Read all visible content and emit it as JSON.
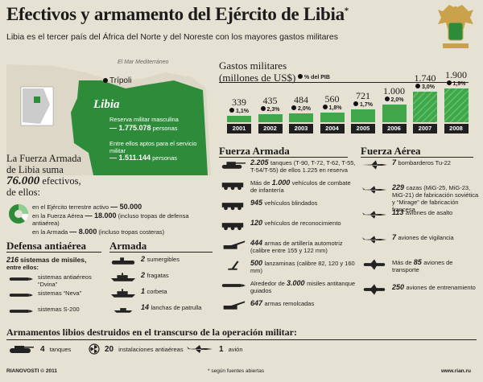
{
  "header": {
    "title": "Efectivos y armamento del Ejército de Libia",
    "title_mark": "*",
    "subtitle": "Libia es el tercer país del África del Norte y del Noreste con los mayores gastos militares"
  },
  "map": {
    "sea_label": "El Mar Mediterráneo",
    "capital": "Trípoli",
    "country": "Libia",
    "reserve_label": "Reserva militar masculina",
    "reserve_value": "— 1.775.078",
    "reserve_unit": "personas",
    "fit_label": "Entre ellos aptos para el servicio militar",
    "fit_value": "— 1.511.144",
    "fit_unit": "personas"
  },
  "armed_force": {
    "intro1": "La Fuerza Armada",
    "intro2": "de Libia suma",
    "count": "76.000",
    "intro3": "efectivos,",
    "intro4": "de ellos:",
    "items": [
      {
        "prefix": "en el Ejército terrestre activo",
        "value": "— 50.000",
        "note": ""
      },
      {
        "prefix": "en la Fuerza Aérea",
        "value": "— 18.000",
        "note": "(incluso tropas de defensa antiaérea)"
      },
      {
        "prefix": "en la Armada",
        "value": "— 8.000",
        "note": "(incluso tropas costeras)"
      }
    ]
  },
  "chart_data": {
    "type": "bar",
    "title": "Gastos militares",
    "subtitle": "(millones de US$)",
    "legend": "% del PIB",
    "categories": [
      "2001",
      "2002",
      "2003",
      "2004",
      "2005",
      "2006",
      "2007",
      "2008"
    ],
    "values": [
      339,
      435,
      484,
      560,
      721,
      1000,
      1740,
      1900
    ],
    "value_labels": [
      "339",
      "435",
      "484",
      "560",
      "721",
      "1.000",
      "1.740",
      "1.900"
    ],
    "pct_labels": [
      "1,1%",
      "2,3%",
      "2,0%",
      "1,8%",
      "1,7%",
      "2,0%",
      "3,0%",
      "1,9%"
    ],
    "hatched": [
      false,
      false,
      false,
      false,
      false,
      false,
      true,
      true
    ]
  },
  "fuerza_armada": {
    "heading": "Fuerza Armada",
    "items": [
      {
        "num": "2.205",
        "text": "tanques (T-90, T-72, T-62, T-55, T-54/T-55) de ellos 1.225 en reserva"
      },
      {
        "num": "1.000",
        "pre": "Más de",
        "text": "vehículos de combate de infantería"
      },
      {
        "num": "945",
        "text": "vehículos blindados"
      },
      {
        "num": "120",
        "text": "vehículos de reconocimiento"
      },
      {
        "num": "444",
        "text": "armas de artillería automotriz (calibre entre 155 y 122 mm)"
      },
      {
        "num": "500",
        "text": "lanzaminas (calibre 82, 120 y 160 mm)"
      },
      {
        "num": "3.000",
        "pre": "Alrededor de",
        "text": "misiles antitanque guiados"
      },
      {
        "num": "647",
        "text": "armas remolcadas"
      }
    ]
  },
  "fuerza_aerea": {
    "heading": "Fuerza Aérea",
    "items": [
      {
        "num": "7",
        "text": "bombarderos Tu-22"
      },
      {
        "num": "229",
        "text": "cazas (MiG-25, MiG-23, MiG-21) de fabricación soviética y “Mirage” de fabricación francesa"
      },
      {
        "num": "113",
        "text": "aviones de asalto"
      },
      {
        "num": "7",
        "text": "aviones de vigilancia"
      },
      {
        "num": "85",
        "pre": "Más de",
        "text": "aviones de transporte"
      },
      {
        "num": "250",
        "text": "aviones de entrenamiento"
      }
    ]
  },
  "defensa": {
    "heading": "Defensa antiaérea",
    "count": "216",
    "label": "sistemas de misiles,",
    "sub": "entre ellos:",
    "items": [
      "sistemas antiaéreos “Dvina”",
      "sistemas “Neva”",
      "sistemas S-200"
    ]
  },
  "armada": {
    "heading": "Armada",
    "items": [
      {
        "num": "2",
        "text": "sumergibles"
      },
      {
        "num": "2",
        "text": "fragatas"
      },
      {
        "num": "1",
        "text": "corbeta"
      },
      {
        "num": "14",
        "text": "lanchas de patrulla"
      }
    ]
  },
  "destroyed": {
    "heading": "Armamentos libios destruidos en el transcurso de la operación militar:",
    "items": [
      {
        "num": "4",
        "text": "tanques"
      },
      {
        "num": "20",
        "text": "instalaciones antiaéreas"
      },
      {
        "num": "1",
        "text": "avión"
      }
    ]
  },
  "footer": {
    "left": "RIANOVOSTI © 2011",
    "center": "* según fuentes abiertas",
    "right": "www.rian.ru"
  },
  "colors": {
    "accent": "#2e8b3a",
    "bar": "#3fa64a",
    "background": "#e6e2d3"
  }
}
